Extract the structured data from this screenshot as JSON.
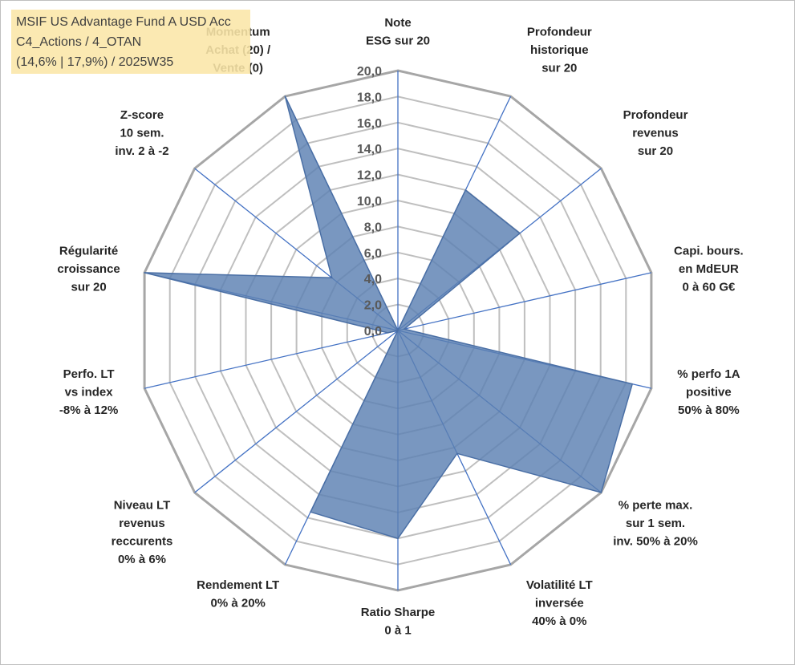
{
  "chart_data": {
    "type": "radar",
    "title_lines": [
      "MSIF US Advantage Fund A USD Acc",
      "C4_Actions / 4_OTAN",
      "(14,6% | 17,9%) / 2025W35"
    ],
    "rlim": [
      0,
      20
    ],
    "tick_step": 2,
    "tick_labels": [
      "0,0",
      "2,0",
      "4,0",
      "6,0",
      "8,0",
      "10,0",
      "12,0",
      "14,0",
      "16,0",
      "18,0",
      "20,0"
    ],
    "grid": true,
    "axes": [
      {
        "label": [
          "Note",
          "ESG sur 20"
        ],
        "value": 0
      },
      {
        "label": [
          "Profondeur",
          "historique",
          "sur 20"
        ],
        "value": 12
      },
      {
        "label": [
          "Profondeur",
          "revenus",
          "sur 20"
        ],
        "value": 12
      },
      {
        "label": [
          "Capi. bours.",
          "en MdEUR",
          "0 à 60 G€"
        ],
        "value": 0.5
      },
      {
        "label": [
          "% perfo 1A",
          "positive",
          "50% à 80%"
        ],
        "value": 18.5
      },
      {
        "label": [
          "% perte max.",
          "sur 1 sem.",
          "inv. 50% à 20%"
        ],
        "value": 20
      },
      {
        "label": [
          "Volatilité LT",
          "inversée",
          "40% à 0%"
        ],
        "value": 10.5
      },
      {
        "label": [
          "Ratio Sharpe",
          "0 à 1"
        ],
        "value": 16
      },
      {
        "label": [
          "Rendement LT",
          "0% à 20%"
        ],
        "value": 15.5
      },
      {
        "label": [
          "Niveau LT",
          "revenus",
          "reccurents",
          "0% à 6%"
        ],
        "value": 0
      },
      {
        "label": [
          "Perfo. LT",
          "vs index",
          "-8% à 12%"
        ],
        "value": 0.8
      },
      {
        "label": [
          "Régularité",
          "croissance",
          "sur 20"
        ],
        "value": 20
      },
      {
        "label": [
          "Z-score",
          "10 sem.",
          "inv. 2 à -2"
        ],
        "value": 6.5
      },
      {
        "label": [
          "Momentum",
          "Achat (20) /",
          "Vente (0)"
        ],
        "value": 20
      }
    ],
    "colors": {
      "fill": "#5b80b2",
      "outline": "#4a6fa5",
      "spoke": "#4472c4",
      "grid": "#bfbfbf",
      "grid_outer": "#a6a6a6"
    }
  }
}
